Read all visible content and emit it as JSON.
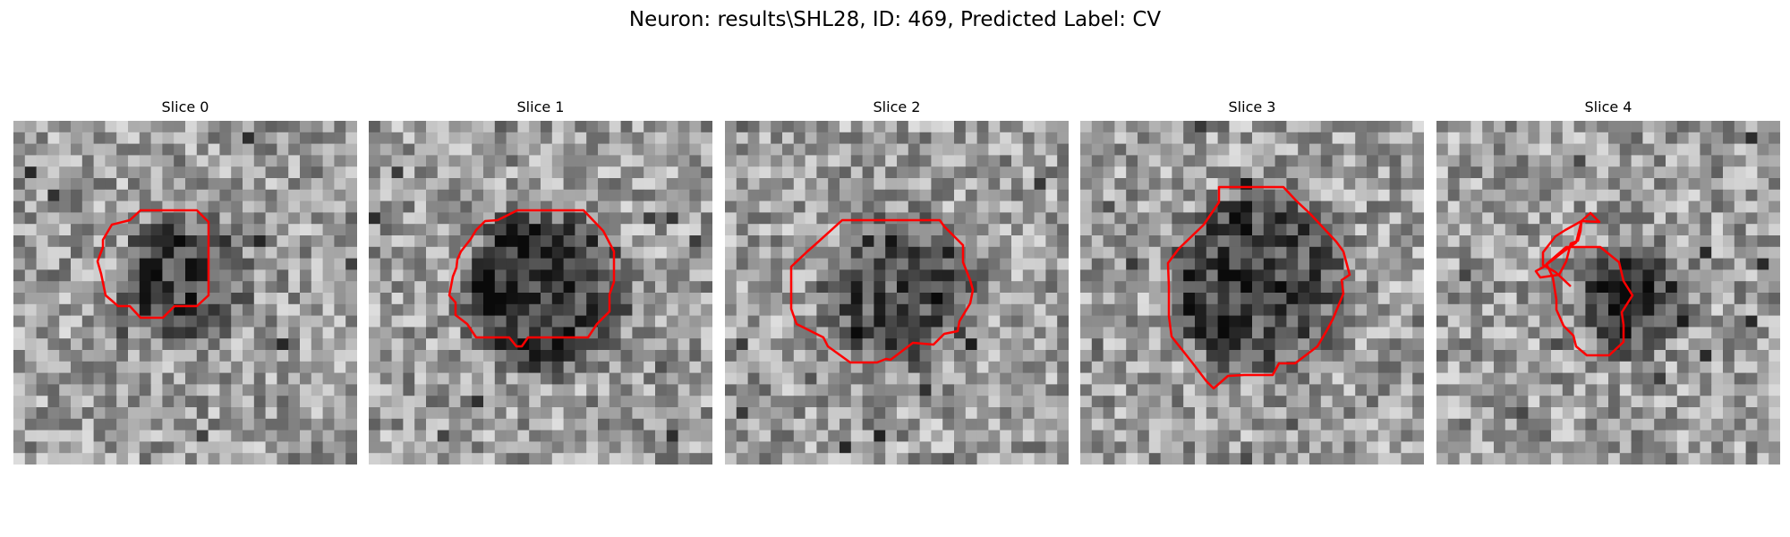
{
  "figure": {
    "title": "Neuron: results\\SHL28, ID: 469, Predicted Label: CV"
  },
  "colors": {
    "contour": "#ff0000"
  },
  "slices": [
    {
      "title": "Slice 0",
      "center": [
        14.5,
        13.5
      ],
      "radius": 5.5,
      "contrast": 0.8
    },
    {
      "title": "Slice 1",
      "center": [
        15,
        14.5
      ],
      "radius": 7.5,
      "contrast": 0.9
    },
    {
      "title": "Slice 2",
      "center": [
        15,
        14.5
      ],
      "radius": 7,
      "contrast": 0.65
    },
    {
      "title": "Slice 3",
      "center": [
        15,
        13.5
      ],
      "radius": 8,
      "contrast": 0.85
    },
    {
      "title": "Slice 4",
      "center": [
        16.5,
        15
      ],
      "radius": 4.5,
      "contrast": 0.85
    }
  ]
}
